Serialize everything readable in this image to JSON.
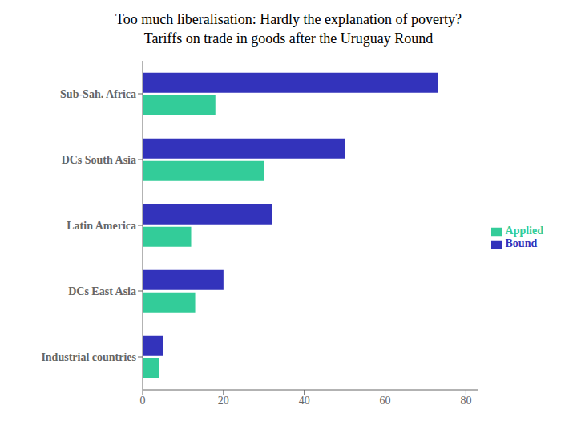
{
  "chart_data": {
    "type": "bar",
    "orientation": "horizontal",
    "title": "Too much liberalisation:  Hardly the explanation of poverty?",
    "subtitle": "Tariffs on trade in goods after the Uruguay Round",
    "categories": [
      "Sub-Sah. Africa",
      "DCs South Asia",
      "Latin America",
      "DCs East Asia",
      "Industrial countries"
    ],
    "series": [
      {
        "name": "Bound",
        "color": "#3333bb",
        "values": [
          73,
          50,
          32,
          20,
          5
        ]
      },
      {
        "name": "Applied",
        "color": "#33cc99",
        "values": [
          18,
          30,
          12,
          13,
          4
        ]
      }
    ],
    "xlim": [
      0,
      83
    ],
    "xticks": [
      0,
      20,
      40,
      60,
      80
    ],
    "grid": false,
    "legend": "right"
  }
}
